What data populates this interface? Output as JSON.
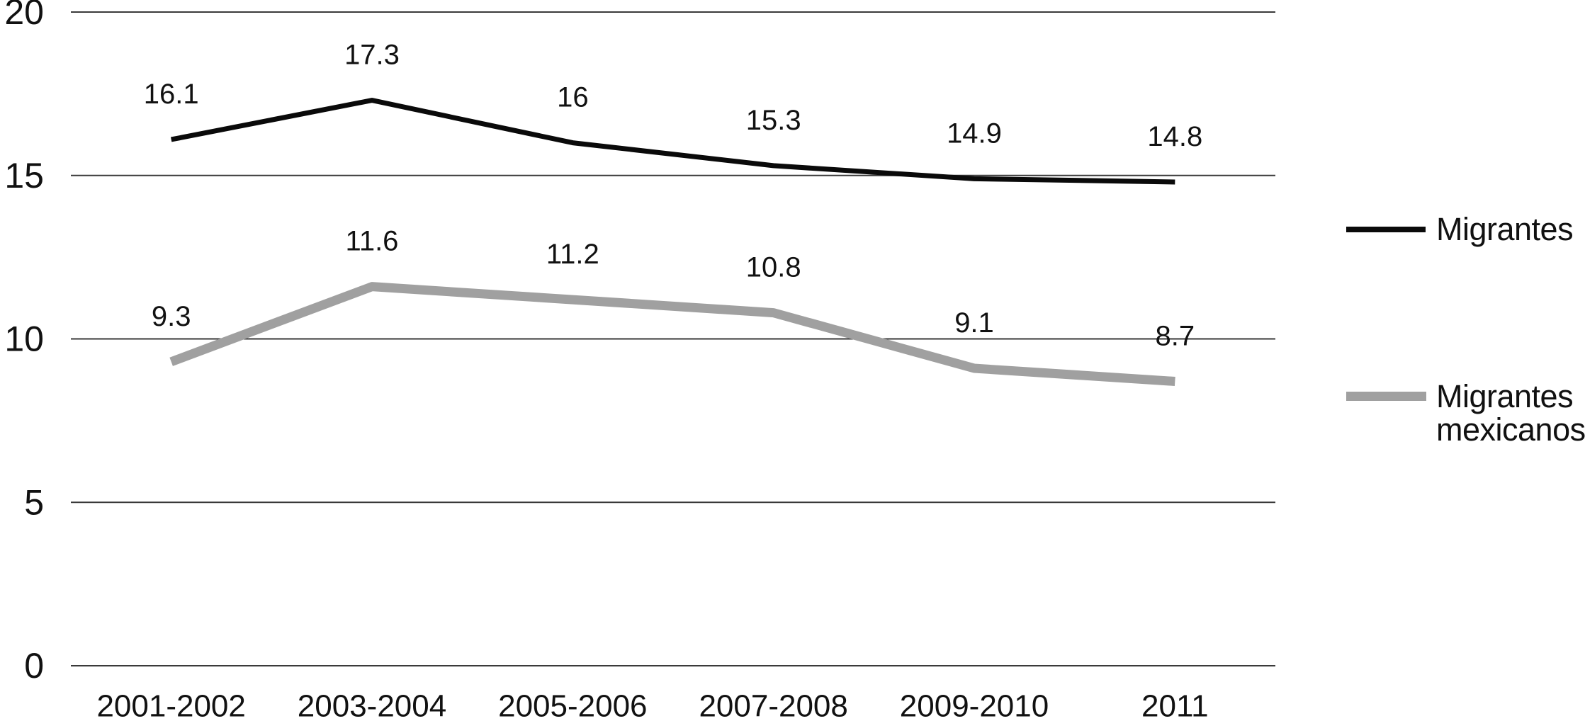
{
  "chart_data": {
    "type": "line",
    "categories": [
      "2001-2002",
      "2003-2004",
      "2005-2006",
      "2007-2008",
      "2009-2010",
      "2011"
    ],
    "series": [
      {
        "name": "Migrantes",
        "values": [
          16.1,
          17.3,
          16,
          15.3,
          14.9,
          14.8
        ],
        "labels": [
          "16.1",
          "17.3",
          "16",
          "15.3",
          "14.9",
          "14.8"
        ],
        "color": "#0a0a0a",
        "stroke_width": 7
      },
      {
        "name": "Migrantes mexicanos",
        "values": [
          9.3,
          11.6,
          11.2,
          10.8,
          9.1,
          8.7
        ],
        "labels": [
          "9.3",
          "11.6",
          "11.2",
          "10.8",
          "9.1",
          "8.7"
        ],
        "color": "#a0a0a0",
        "stroke_width": 13
      }
    ],
    "y_ticks": [
      0,
      5,
      10,
      15,
      20
    ],
    "y_tick_labels": [
      "0",
      "5",
      "10",
      "15",
      "20"
    ],
    "ylim": [
      0,
      20
    ],
    "xlabel": "",
    "ylabel": "",
    "grid": "horizontal",
    "legend_position": "right"
  },
  "colors": {
    "background": "#ffffff",
    "gridline": "#3a3a3a",
    "text": "#111111"
  }
}
